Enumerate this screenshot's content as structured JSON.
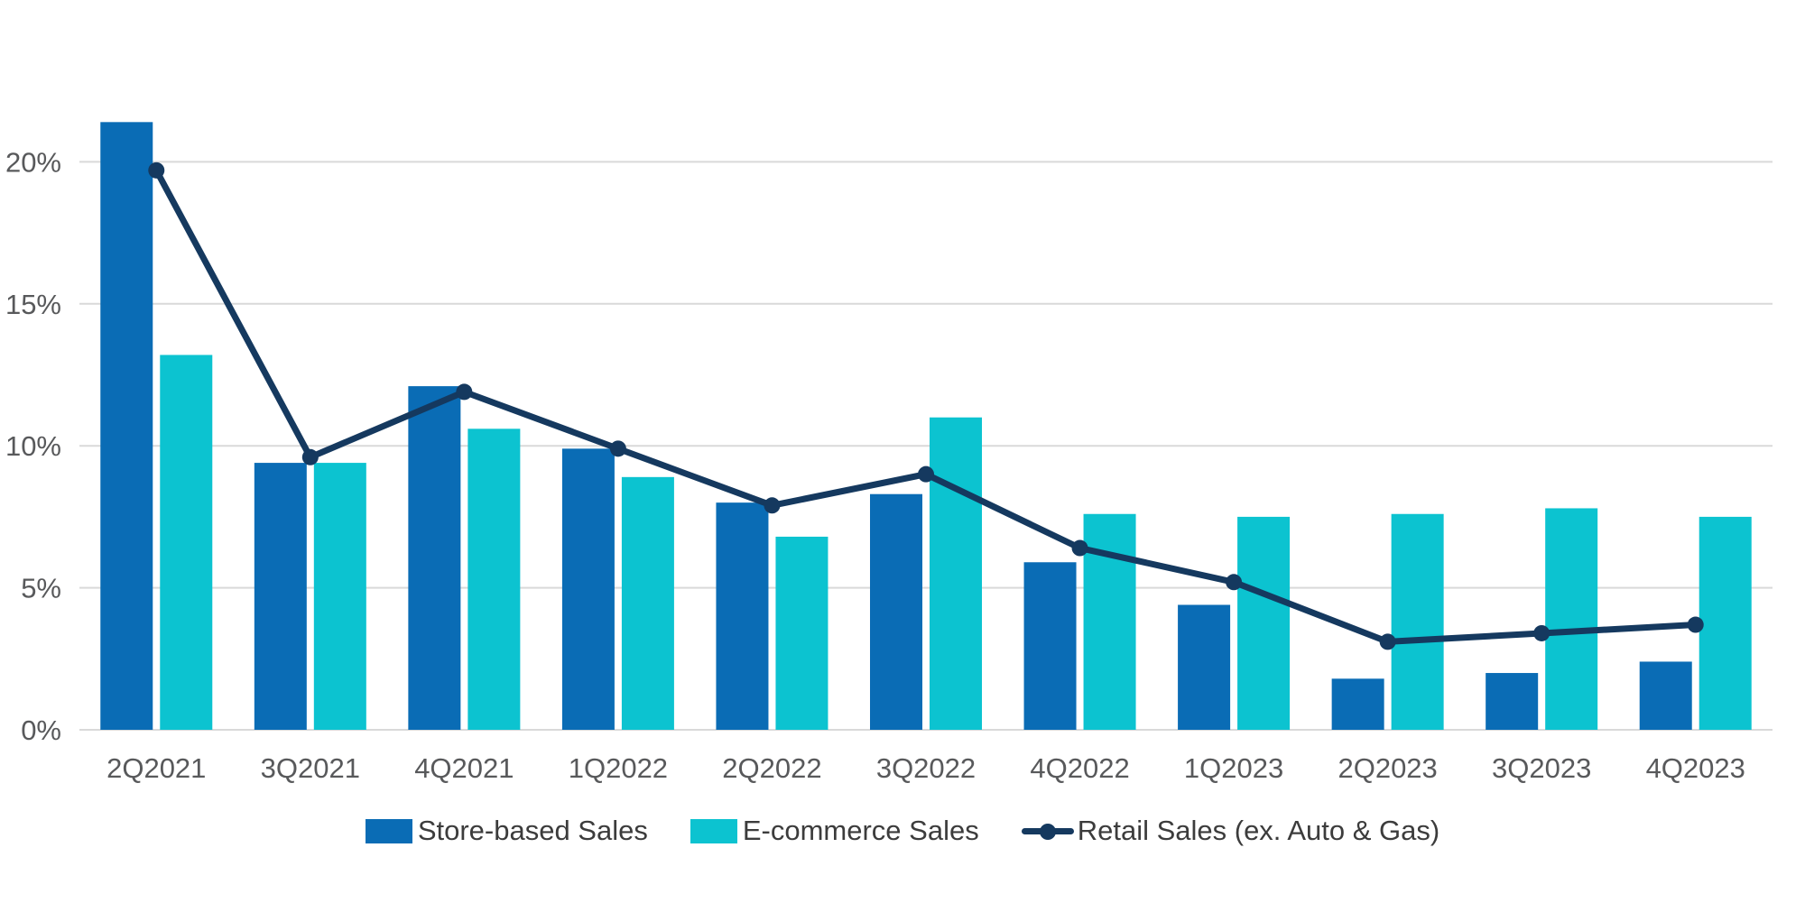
{
  "chart_data": {
    "type": "bar",
    "subtype": "grouped-bar-with-line-overlay",
    "categories": [
      "2Q2021",
      "3Q2021",
      "4Q2021",
      "1Q2022",
      "2Q2022",
      "3Q2022",
      "4Q2022",
      "1Q2023",
      "2Q2023",
      "3Q2023",
      "4Q2023"
    ],
    "series": [
      {
        "name": "Store-based Sales",
        "type": "bar",
        "color": "#0a6cb5",
        "values": [
          21.4,
          9.4,
          12.1,
          9.9,
          8.0,
          8.3,
          5.9,
          4.4,
          1.8,
          2.0,
          2.4
        ]
      },
      {
        "name": "E-commerce Sales",
        "type": "bar",
        "color": "#0cc3d0",
        "values": [
          13.2,
          9.4,
          10.6,
          8.9,
          6.8,
          11.0,
          7.6,
          7.5,
          7.6,
          7.8,
          7.5
        ]
      },
      {
        "name": "Retail Sales (ex. Auto & Gas)",
        "type": "line",
        "color": "#15395f",
        "values": [
          19.7,
          9.6,
          11.9,
          9.9,
          7.9,
          9.0,
          6.4,
          5.2,
          3.1,
          3.4,
          3.7
        ]
      }
    ],
    "y_axis": {
      "tick_labels": [
        "0%",
        "5%",
        "10%",
        "15%",
        "20%"
      ],
      "tick_values": [
        0,
        5,
        10,
        15,
        20
      ],
      "min": 0,
      "max": 22.3,
      "unit": "%"
    },
    "x_axis": {
      "tick_labels": [
        "2Q2021",
        "3Q2021",
        "4Q2021",
        "1Q2022",
        "2Q2022",
        "3Q2022",
        "4Q2022",
        "1Q2023",
        "2Q2023",
        "3Q2023",
        "4Q2023"
      ]
    },
    "gridlines": true,
    "legend_position": "bottom"
  },
  "colors": {
    "background": "#ffffff",
    "gridline": "#d9d9d9",
    "axis_text": "#58595b",
    "legend_text": "#3c3c3c",
    "store_bar": "#0a6cb5",
    "ecommerce_bar": "#0cc3d0",
    "retail_line": "#15395f"
  },
  "legend": {
    "items": [
      {
        "label": "Store-based Sales"
      },
      {
        "label": "E-commerce Sales"
      },
      {
        "label": "Retail Sales (ex. Auto & Gas)"
      }
    ]
  }
}
